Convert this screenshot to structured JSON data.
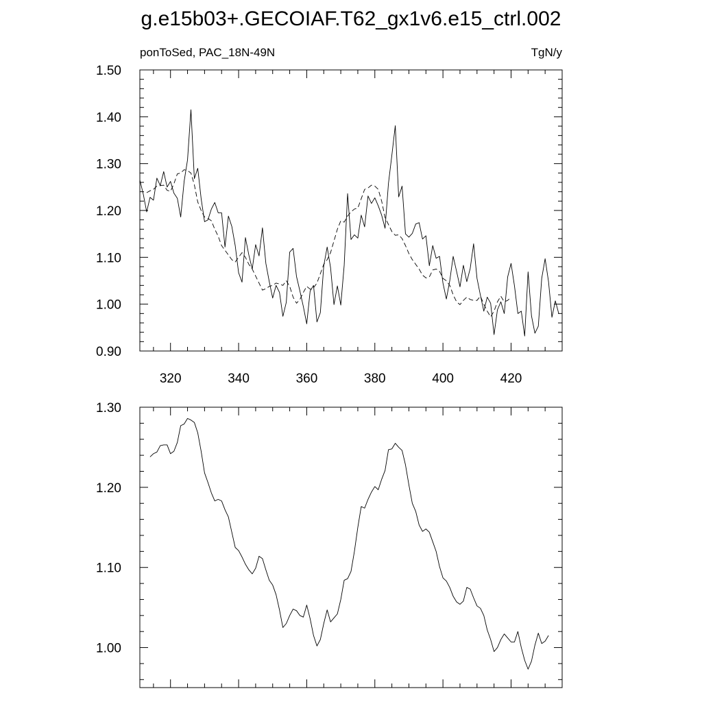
{
  "title": "g.e15b03+.GECOIAF.T62_gx1v6.e15_ctrl.002",
  "chart_data": [
    {
      "type": "line",
      "left_label": "ponToSed, PAC_18N-49N",
      "right_label": "TgN/y",
      "xlim": [
        311,
        435
      ],
      "ylim": [
        0.9,
        1.5
      ],
      "x_ticks": [
        320,
        340,
        360,
        380,
        400,
        420
      ],
      "y_ticks": [
        0.9,
        1.0,
        1.1,
        1.2,
        1.3,
        1.4,
        1.5
      ],
      "y_tick_labels": [
        "0.90",
        "1.00",
        "1.10",
        "1.20",
        "1.30",
        "1.40",
        "1.50"
      ],
      "grid": false,
      "series": [
        {
          "style": "solid",
          "x_start": 311,
          "values": [
            1.265,
            1.235,
            1.197,
            1.228,
            1.222,
            1.269,
            1.253,
            1.283,
            1.25,
            1.262,
            1.237,
            1.226,
            1.186,
            1.262,
            1.308,
            1.415,
            1.268,
            1.29,
            1.225,
            1.176,
            1.18,
            1.203,
            1.217,
            1.195,
            1.195,
            1.122,
            1.188,
            1.166,
            1.125,
            1.067,
            1.047,
            1.142,
            1.105,
            1.075,
            1.127,
            1.103,
            1.163,
            1.087,
            1.048,
            1.013,
            1.04,
            1.025,
            0.974,
            1.004,
            1.111,
            1.119,
            1.059,
            1.028,
            0.995,
            0.958,
            1.028,
            1.04,
            0.962,
            0.982,
            1.082,
            1.122,
            1.078,
            0.999,
            1.039,
            0.998,
            1.083,
            1.236,
            1.138,
            1.148,
            1.141,
            1.19,
            1.165,
            1.231,
            1.215,
            1.227,
            1.21,
            1.19,
            1.162,
            1.258,
            1.318,
            1.381,
            1.229,
            1.252,
            1.15,
            1.143,
            1.151,
            1.171,
            1.174,
            1.139,
            1.146,
            1.082,
            1.125,
            1.098,
            1.102,
            1.045,
            1.011,
            1.05,
            1.102,
            1.07,
            1.037,
            1.083,
            1.048,
            1.076,
            1.129,
            1.055,
            1.019,
            0.985,
            1.015,
            1.002,
            0.935,
            0.988,
            1.005,
            0.98,
            1.058,
            1.087,
            1.039,
            0.98,
            0.985,
            0.932,
            1.069,
            0.975,
            0.938,
            0.953,
            1.055,
            1.097,
            1.048,
            0.972,
            1.007,
            0.98
          ]
        },
        {
          "style": "dashed",
          "x_start": 313,
          "values": [
            1.238,
            1.242,
            1.245,
            1.252,
            1.253,
            1.254,
            1.243,
            1.241,
            1.257,
            1.278,
            1.28,
            1.287,
            1.285,
            1.28,
            1.255,
            1.218,
            1.2,
            1.186,
            1.183,
            1.178,
            1.16,
            1.145,
            1.125,
            1.115,
            1.105,
            1.095,
            1.09,
            1.1,
            1.11,
            1.1,
            1.085,
            1.075,
            1.06,
            1.045,
            1.03,
            1.033,
            1.038,
            1.04,
            1.045,
            1.043,
            1.04,
            1.05,
            1.038,
            1.015,
            1.002,
            1.01,
            1.025,
            1.038,
            1.032,
            1.035,
            1.045,
            1.065,
            1.085,
            1.095,
            1.11,
            1.135,
            1.16,
            1.178,
            1.175,
            1.188,
            1.197,
            1.203,
            1.205,
            1.225,
            1.245,
            1.248,
            1.254,
            1.252,
            1.245,
            1.22,
            1.185,
            1.17,
            1.155,
            1.147,
            1.148,
            1.14,
            1.125,
            1.108,
            1.095,
            1.085,
            1.075,
            1.062,
            1.056,
            1.058,
            1.073,
            1.075,
            1.07,
            1.055,
            1.05,
            1.04,
            1.02,
            1.005,
            0.999,
            1.008,
            1.015,
            1.01,
            1.008,
            1.008,
            1.017,
            1.0,
            0.985,
            0.973,
            0.985,
            1.005,
            1.017,
            1.005,
            1.008,
            1.015
          ]
        }
      ]
    },
    {
      "type": "line",
      "xlim": [
        311,
        435
      ],
      "ylim": [
        0.95,
        1.3
      ],
      "y_ticks": [
        1.0,
        1.1,
        1.2,
        1.3
      ],
      "y_tick_labels": [
        "1.00",
        "1.10",
        "1.20",
        "1.30"
      ],
      "grid": false,
      "series": [
        {
          "style": "solid",
          "x_start": 314,
          "values": [
            1.238,
            1.242,
            1.244,
            1.252,
            1.253,
            1.253,
            1.242,
            1.245,
            1.256,
            1.277,
            1.279,
            1.286,
            1.284,
            1.281,
            1.268,
            1.245,
            1.218,
            1.206,
            1.193,
            1.183,
            1.185,
            1.183,
            1.172,
            1.163,
            1.144,
            1.125,
            1.121,
            1.113,
            1.104,
            1.097,
            1.092,
            1.099,
            1.114,
            1.111,
            1.097,
            1.084,
            1.078,
            1.066,
            1.047,
            1.025,
            1.03,
            1.04,
            1.048,
            1.046,
            1.04,
            1.038,
            1.053,
            1.036,
            1.015,
            1.002,
            1.01,
            1.03,
            1.047,
            1.032,
            1.037,
            1.042,
            1.06,
            1.084,
            1.086,
            1.095,
            1.12,
            1.15,
            1.176,
            1.174,
            1.185,
            1.194,
            1.201,
            1.197,
            1.21,
            1.221,
            1.247,
            1.248,
            1.255,
            1.25,
            1.246,
            1.228,
            1.203,
            1.18,
            1.17,
            1.153,
            1.145,
            1.148,
            1.144,
            1.132,
            1.12,
            1.101,
            1.087,
            1.083,
            1.075,
            1.064,
            1.057,
            1.054,
            1.058,
            1.075,
            1.073,
            1.062,
            1.052,
            1.049,
            1.04,
            1.022,
            1.01,
            0.995,
            1.0,
            1.01,
            1.017,
            1.012,
            1.007,
            1.007,
            1.02,
            1.0,
            0.984,
            0.973,
            0.983,
            1.003,
            1.018,
            1.005,
            1.008,
            1.015
          ]
        }
      ]
    }
  ]
}
